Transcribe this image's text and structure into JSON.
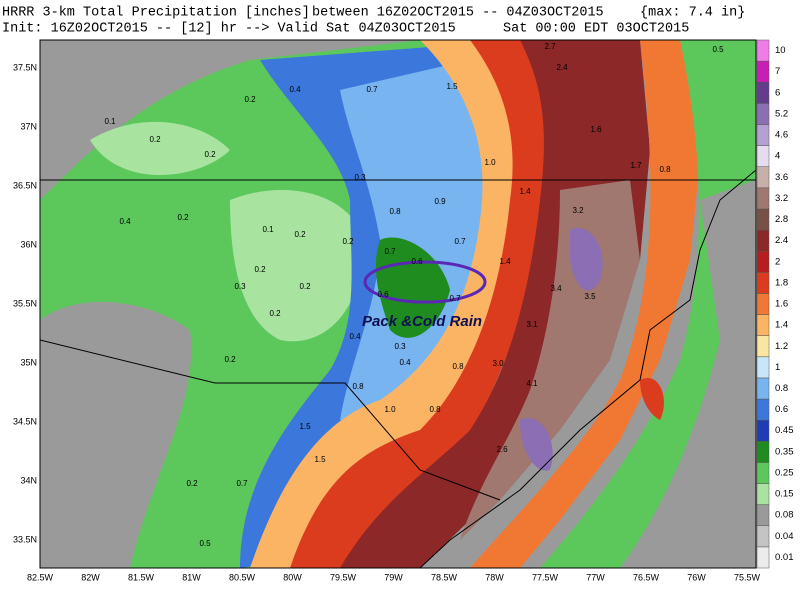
{
  "header": {
    "title": "HRRR 3-km Total Precipitation [inches]",
    "range": "between 16Z02OCT2015 -- 04Z03OCT2015",
    "max": "{max:  7.4 in}",
    "init": "Init: 16Z02OCT2015 -- [12] hr --> Valid Sat 04Z03OCT2015",
    "local": "Sat 00:00 EDT 03OCT2015"
  },
  "map": {
    "annotation": "Pack &Cold Rain",
    "lat_labels": [
      "37.5N",
      "37N",
      "36.5N",
      "36N",
      "35.5N",
      "35N",
      "34.5N",
      "34N",
      "33.5N"
    ],
    "lon_labels": [
      "82.5W",
      "82W",
      "81.5W",
      "81W",
      "80.5W",
      "80W",
      "79.5W",
      "79W",
      "78.5W",
      "78W",
      "77.5W",
      "77W",
      "76.5W",
      "76W",
      "75.5W"
    ],
    "labels": [
      "0.1",
      "0.2",
      "0.2",
      "0.2",
      "0.4",
      "0.7",
      "0.3",
      "0.8",
      "0.9",
      "1.0",
      "1.4",
      "0.7",
      "0.6",
      "0.7",
      "1.4",
      "0.2",
      "0.1",
      "0.2",
      "0.2",
      "0.3",
      "0.2",
      "0.2",
      "0.6",
      "0.7",
      "0.4",
      "0.3",
      "0.4",
      "0.8",
      "0.2",
      "0.8",
      "1.0",
      "0.8",
      "1.5",
      "1.5",
      "3.0",
      "3.1",
      "3.4",
      "3.5",
      "3.2",
      "2.4",
      "2.7",
      "1.5",
      "1.6",
      "1.7",
      "4.1",
      "2.6",
      "0.2",
      "0.7",
      "0.5",
      "0.4",
      "0.2",
      "0.5",
      "0.8"
    ]
  },
  "colorbar": [
    {
      "label": "0.01",
      "color": "#ececec"
    },
    {
      "label": "0.04",
      "color": "#c4c4c4"
    },
    {
      "label": "0.08",
      "color": "#9a9a9a"
    },
    {
      "label": "0.15",
      "color": "#a8e4a0"
    },
    {
      "label": "0.25",
      "color": "#5cc85c"
    },
    {
      "label": "0.35",
      "color": "#1e8c1e"
    },
    {
      "label": "0.45",
      "color": "#1e3cb4"
    },
    {
      "label": "0.6",
      "color": "#3c78dc"
    },
    {
      "label": "0.8",
      "color": "#78b4f0"
    },
    {
      "label": "1",
      "color": "#c8e6fa"
    },
    {
      "label": "1.2",
      "color": "#fae6a0"
    },
    {
      "label": "1.4",
      "color": "#fab464"
    },
    {
      "label": "1.6",
      "color": "#f07832"
    },
    {
      "label": "1.8",
      "color": "#dc3c1e"
    },
    {
      "label": "2",
      "color": "#b41e1e"
    },
    {
      "label": "2.4",
      "color": "#8c2828"
    },
    {
      "label": "2.8",
      "color": "#785046"
    },
    {
      "label": "3.2",
      "color": "#a07870"
    },
    {
      "label": "3.6",
      "color": "#c8b0aa"
    },
    {
      "label": "4",
      "color": "#e6dcf0"
    },
    {
      "label": "4.6",
      "color": "#b4a0d2"
    },
    {
      "label": "5.2",
      "color": "#8c6eb4"
    },
    {
      "label": "6",
      "color": "#643c8c"
    },
    {
      "label": "7",
      "color": "#c81eb4"
    },
    {
      "label": "10",
      "color": "#f07ce6"
    }
  ]
}
